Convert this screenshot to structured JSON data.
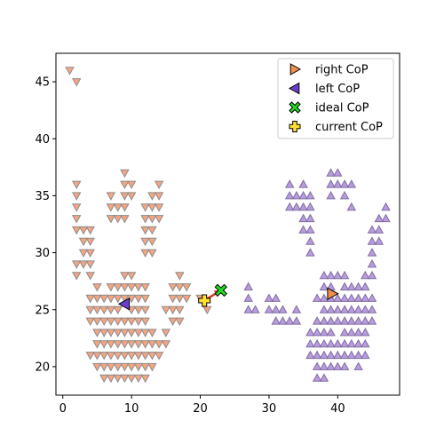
{
  "chart_data": {
    "type": "scatter",
    "xlim": [
      -1,
      49
    ],
    "ylim": [
      17.5,
      47.5
    ],
    "xticks": [
      0,
      10,
      20,
      30,
      40
    ],
    "yticks": [
      20,
      25,
      30,
      35,
      40,
      45
    ],
    "grid": false,
    "legend_position": "top-right",
    "series": [
      {
        "name": "",
        "marker": "triangle-down",
        "color": "#f4a582",
        "edge": "#8c8c8c",
        "points": [
          [
            1,
            46
          ],
          [
            2,
            45
          ],
          [
            9,
            37
          ],
          [
            2,
            36
          ],
          [
            9,
            36
          ],
          [
            10,
            36
          ],
          [
            14,
            36
          ],
          [
            2,
            35
          ],
          [
            7,
            35
          ],
          [
            9,
            35
          ],
          [
            10,
            35
          ],
          [
            13,
            35
          ],
          [
            14,
            35
          ],
          [
            2,
            34
          ],
          [
            7,
            34
          ],
          [
            8,
            34
          ],
          [
            9,
            34
          ],
          [
            12,
            34
          ],
          [
            13,
            34
          ],
          [
            14,
            34
          ],
          [
            2,
            33
          ],
          [
            7,
            33
          ],
          [
            8,
            33
          ],
          [
            9,
            33
          ],
          [
            12,
            33
          ],
          [
            13,
            33
          ],
          [
            14,
            33
          ],
          [
            2,
            32
          ],
          [
            3,
            32
          ],
          [
            4,
            32
          ],
          [
            12,
            32
          ],
          [
            13,
            32
          ],
          [
            3,
            31
          ],
          [
            4,
            31
          ],
          [
            12,
            31
          ],
          [
            13,
            31
          ],
          [
            3,
            30
          ],
          [
            4,
            30
          ],
          [
            12,
            30
          ],
          [
            13,
            30
          ],
          [
            2,
            29
          ],
          [
            3,
            29
          ],
          [
            4,
            29
          ],
          [
            2,
            28
          ],
          [
            4,
            28
          ],
          [
            10,
            28
          ],
          [
            9,
            28
          ],
          [
            17,
            28
          ],
          [
            5,
            27
          ],
          [
            7,
            27
          ],
          [
            8,
            27
          ],
          [
            9,
            27
          ],
          [
            10,
            27
          ],
          [
            11,
            27
          ],
          [
            12,
            27
          ],
          [
            16,
            27
          ],
          [
            17,
            27
          ],
          [
            18,
            27
          ],
          [
            4,
            26
          ],
          [
            5,
            26
          ],
          [
            6,
            26
          ],
          [
            7,
            26
          ],
          [
            8,
            26
          ],
          [
            9,
            26
          ],
          [
            10,
            26
          ],
          [
            11,
            26
          ],
          [
            12,
            26
          ],
          [
            16,
            26
          ],
          [
            17,
            26
          ],
          [
            18,
            26
          ],
          [
            20,
            26
          ],
          [
            4,
            25
          ],
          [
            5,
            25
          ],
          [
            6,
            25
          ],
          [
            7,
            25
          ],
          [
            8,
            25
          ],
          [
            10,
            25
          ],
          [
            11,
            25
          ],
          [
            12,
            25
          ],
          [
            15,
            25
          ],
          [
            16,
            25
          ],
          [
            17,
            25
          ],
          [
            21,
            25
          ],
          [
            4,
            24
          ],
          [
            5,
            24
          ],
          [
            6,
            24
          ],
          [
            7,
            24
          ],
          [
            8,
            24
          ],
          [
            9,
            24
          ],
          [
            10,
            24
          ],
          [
            11,
            24
          ],
          [
            12,
            24
          ],
          [
            16,
            24
          ],
          [
            17,
            24
          ],
          [
            5,
            23
          ],
          [
            6,
            23
          ],
          [
            7,
            23
          ],
          [
            8,
            23
          ],
          [
            9,
            23
          ],
          [
            10,
            23
          ],
          [
            11,
            23
          ],
          [
            12,
            23
          ],
          [
            13,
            23
          ],
          [
            15,
            23
          ],
          [
            5,
            22
          ],
          [
            6,
            22
          ],
          [
            7,
            22
          ],
          [
            8,
            22
          ],
          [
            9,
            22
          ],
          [
            10,
            22
          ],
          [
            11,
            22
          ],
          [
            12,
            22
          ],
          [
            13,
            22
          ],
          [
            14,
            22
          ],
          [
            15,
            22
          ],
          [
            4,
            21
          ],
          [
            5,
            21
          ],
          [
            6,
            21
          ],
          [
            7,
            21
          ],
          [
            8,
            21
          ],
          [
            9,
            21
          ],
          [
            10,
            21
          ],
          [
            11,
            21
          ],
          [
            12,
            21
          ],
          [
            13,
            21
          ],
          [
            14,
            21
          ],
          [
            5,
            20
          ],
          [
            6,
            20
          ],
          [
            7,
            20
          ],
          [
            8,
            20
          ],
          [
            9,
            20
          ],
          [
            10,
            20
          ],
          [
            11,
            20
          ],
          [
            12,
            20
          ],
          [
            13,
            20
          ],
          [
            6,
            19
          ],
          [
            7,
            19
          ],
          [
            8,
            19
          ],
          [
            9,
            19
          ],
          [
            10,
            19
          ],
          [
            11,
            19
          ],
          [
            12,
            19
          ]
        ]
      },
      {
        "name": "",
        "marker": "triangle-up",
        "color": "#b99be0",
        "edge": "#7f6f9f",
        "points": [
          [
            39,
            37
          ],
          [
            40,
            37
          ],
          [
            33,
            36
          ],
          [
            35,
            36
          ],
          [
            39,
            36
          ],
          [
            40,
            36
          ],
          [
            41,
            36
          ],
          [
            42,
            36
          ],
          [
            33,
            35
          ],
          [
            34,
            35
          ],
          [
            35,
            35
          ],
          [
            36,
            35
          ],
          [
            39,
            35
          ],
          [
            41,
            35
          ],
          [
            33,
            34
          ],
          [
            34,
            34
          ],
          [
            35,
            34
          ],
          [
            36,
            34
          ],
          [
            42,
            34
          ],
          [
            47,
            34
          ],
          [
            35,
            33
          ],
          [
            36,
            33
          ],
          [
            46,
            33
          ],
          [
            47,
            33
          ],
          [
            35,
            32
          ],
          [
            36,
            32
          ],
          [
            45,
            32
          ],
          [
            46,
            32
          ],
          [
            36,
            31
          ],
          [
            45,
            31
          ],
          [
            46,
            31
          ],
          [
            36,
            30
          ],
          [
            45,
            30
          ],
          [
            45,
            29
          ],
          [
            38,
            28
          ],
          [
            39,
            28
          ],
          [
            40,
            28
          ],
          [
            41,
            28
          ],
          [
            44,
            28
          ],
          [
            45,
            28
          ],
          [
            27,
            27
          ],
          [
            38,
            27
          ],
          [
            39,
            27
          ],
          [
            41,
            27
          ],
          [
            42,
            27
          ],
          [
            43,
            27
          ],
          [
            44,
            27
          ],
          [
            27,
            26
          ],
          [
            30,
            26
          ],
          [
            31,
            26
          ],
          [
            37,
            26
          ],
          [
            38,
            26
          ],
          [
            39,
            26
          ],
          [
            40,
            26
          ],
          [
            41,
            26
          ],
          [
            42,
            26
          ],
          [
            43,
            26
          ],
          [
            44,
            26
          ],
          [
            45,
            26
          ],
          [
            27,
            25
          ],
          [
            28,
            25
          ],
          [
            30,
            25
          ],
          [
            31,
            25
          ],
          [
            32,
            25
          ],
          [
            34,
            25
          ],
          [
            38,
            25
          ],
          [
            39,
            25
          ],
          [
            40,
            25
          ],
          [
            41,
            25
          ],
          [
            42,
            25
          ],
          [
            43,
            25
          ],
          [
            44,
            25
          ],
          [
            45,
            25
          ],
          [
            31,
            24
          ],
          [
            32,
            24
          ],
          [
            33,
            24
          ],
          [
            34,
            24
          ],
          [
            37,
            24
          ],
          [
            38,
            24
          ],
          [
            39,
            24
          ],
          [
            40,
            24
          ],
          [
            41,
            24
          ],
          [
            42,
            24
          ],
          [
            43,
            24
          ],
          [
            44,
            24
          ],
          [
            45,
            24
          ],
          [
            36,
            23
          ],
          [
            37,
            23
          ],
          [
            38,
            23
          ],
          [
            39,
            23
          ],
          [
            41,
            23
          ],
          [
            42,
            23
          ],
          [
            43,
            23
          ],
          [
            44,
            23
          ],
          [
            36,
            22
          ],
          [
            37,
            22
          ],
          [
            38,
            22
          ],
          [
            39,
            22
          ],
          [
            40,
            22
          ],
          [
            41,
            22
          ],
          [
            42,
            22
          ],
          [
            43,
            22
          ],
          [
            44,
            22
          ],
          [
            36,
            21
          ],
          [
            37,
            21
          ],
          [
            38,
            21
          ],
          [
            39,
            21
          ],
          [
            40,
            21
          ],
          [
            41,
            21
          ],
          [
            42,
            21
          ],
          [
            43,
            21
          ],
          [
            44,
            21
          ],
          [
            37,
            20
          ],
          [
            38,
            20
          ],
          [
            39,
            20
          ],
          [
            40,
            20
          ],
          [
            41,
            20
          ],
          [
            43,
            20
          ],
          [
            37,
            19
          ],
          [
            38,
            19
          ]
        ]
      }
    ],
    "markers": [
      {
        "name": "right CoP",
        "marker": "triangle-right",
        "color": "#f28e50",
        "x": 39.2,
        "y": 26.4
      },
      {
        "name": "left CoP",
        "marker": "triangle-left",
        "color": "#6a3fd0",
        "x": 9.0,
        "y": 25.5
      },
      {
        "name": "ideal CoP",
        "marker": "x",
        "color": "#22dd22",
        "x": 23.0,
        "y": 26.7
      },
      {
        "name": "current CoP",
        "marker": "plus",
        "color": "#ffe033",
        "x": 20.6,
        "y": 25.8
      }
    ],
    "arrow": {
      "from": [
        20.6,
        25.8
      ],
      "to": [
        23.0,
        26.7
      ],
      "color": "#e03020"
    }
  }
}
